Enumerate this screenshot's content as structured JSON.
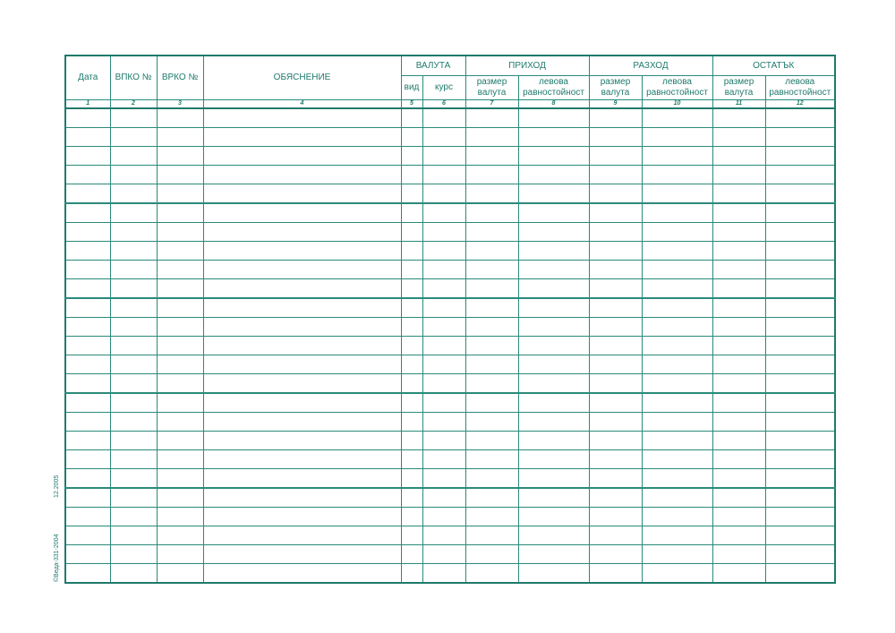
{
  "form": {
    "headers": {
      "date": "Дата",
      "vpko": "ВПКО №",
      "vrko": "ВРКО №",
      "explanation": "ОБЯСНЕНИЕ",
      "currency": "ВАЛУТА",
      "currency_type": "вид",
      "currency_rate": "курс",
      "income": "ПРИХОД",
      "expense": "РАЗХОД",
      "balance": "ОСТАТЪК",
      "amount_line1": "размер",
      "amount_line2": "валута",
      "bgn_line1": "левова",
      "bgn_line2": "равностойност"
    },
    "column_numbers": [
      "1",
      "2",
      "3",
      "4",
      "5",
      "6",
      "7",
      "8",
      "9",
      "10",
      "11",
      "12"
    ],
    "footer_date": "12.2005",
    "footer_code": "©Веда-331-2004"
  },
  "colors": {
    "ink": "#1f7a6c"
  }
}
